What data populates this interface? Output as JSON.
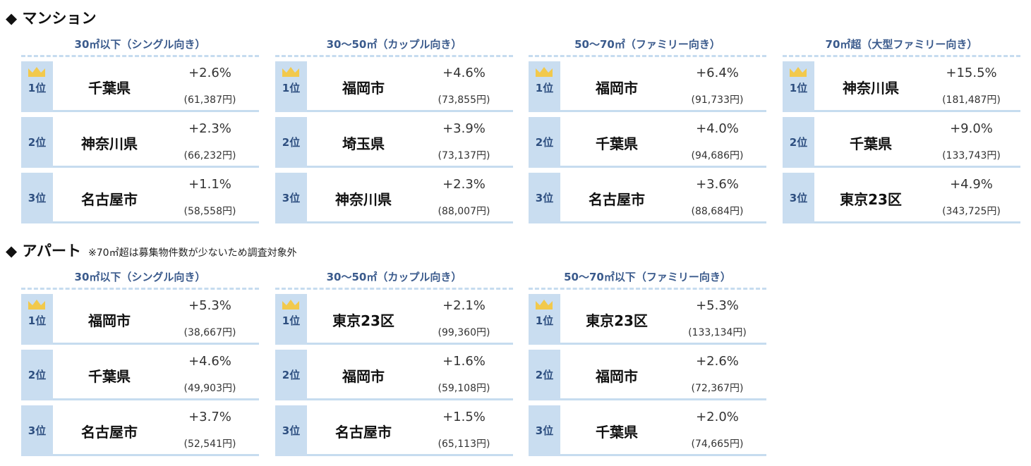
{
  "sections": [
    {
      "title": "◆ マンション",
      "note": "",
      "groups": [
        {
          "header": "30㎡以下（シングル向き）",
          "rows": [
            {
              "rank": "1位",
              "city": "千葉県",
              "pct": "+2.6%",
              "price": "(61,387円)"
            },
            {
              "rank": "2位",
              "city": "神奈川県",
              "pct": "+2.3%",
              "price": "(66,232円)"
            },
            {
              "rank": "3位",
              "city": "名古屋市",
              "pct": "+1.1%",
              "price": "(58,558円)"
            }
          ]
        },
        {
          "header": "30〜50㎡（カップル向き）",
          "rows": [
            {
              "rank": "1位",
              "city": "福岡市",
              "pct": "+4.6%",
              "price": "(73,855円)"
            },
            {
              "rank": "2位",
              "city": "埼玉県",
              "pct": "+3.9%",
              "price": "(73,137円)"
            },
            {
              "rank": "3位",
              "city": "神奈川県",
              "pct": "+2.3%",
              "price": "(88,007円)"
            }
          ]
        },
        {
          "header": "50〜70㎡（ファミリー向き）",
          "rows": [
            {
              "rank": "1位",
              "city": "福岡市",
              "pct": "+6.4%",
              "price": "(91,733円)"
            },
            {
              "rank": "2位",
              "city": "千葉県",
              "pct": "+4.0%",
              "price": "(94,686円)"
            },
            {
              "rank": "3位",
              "city": "名古屋市",
              "pct": "+3.6%",
              "price": "(88,684円)"
            }
          ]
        },
        {
          "header": "70㎡超（大型ファミリー向き）",
          "rows": [
            {
              "rank": "1位",
              "city": "神奈川県",
              "pct": "+15.5%",
              "price": "(181,487円)"
            },
            {
              "rank": "2位",
              "city": "千葉県",
              "pct": "+9.0%",
              "price": "(133,743円)"
            },
            {
              "rank": "3位",
              "city": "東京23区",
              "pct": "+4.9%",
              "price": "(343,725円)"
            }
          ]
        }
      ]
    },
    {
      "title": "◆ アパート",
      "note": "※70㎡超は募集物件数が少ないため調査対象外",
      "groups": [
        {
          "header": "30㎡以下（シングル向き）",
          "rows": [
            {
              "rank": "1位",
              "city": "福岡市",
              "pct": "+5.3%",
              "price": "(38,667円)"
            },
            {
              "rank": "2位",
              "city": "千葉県",
              "pct": "+4.6%",
              "price": "(49,903円)"
            },
            {
              "rank": "3位",
              "city": "名古屋市",
              "pct": "+3.7%",
              "price": "(52,541円)"
            }
          ]
        },
        {
          "header": "30〜50㎡（カップル向き）",
          "rows": [
            {
              "rank": "1位",
              "city": "東京23区",
              "pct": "+2.1%",
              "price": "(99,360円)"
            },
            {
              "rank": "2位",
              "city": "福岡市",
              "pct": "+1.6%",
              "price": "(59,108円)"
            },
            {
              "rank": "3位",
              "city": "名古屋市",
              "pct": "+1.5%",
              "price": "(65,113円)"
            }
          ]
        },
        {
          "header": "50〜70㎡以下（ファミリー向き）",
          "rows": [
            {
              "rank": "1位",
              "city": "東京23区",
              "pct": "+5.3%",
              "price": "(133,134円)"
            },
            {
              "rank": "2位",
              "city": "福岡市",
              "pct": "+2.6%",
              "price": "(72,367円)"
            },
            {
              "rank": "3位",
              "city": "千葉県",
              "pct": "+2.0%",
              "price": "(74,665円)"
            }
          ]
        }
      ]
    }
  ],
  "colors": {
    "rank_bg": "#c9ddf0",
    "header_text": "#3a5a8c",
    "crown": "#f2c94c",
    "dash": "#c6dcef"
  },
  "icons": {
    "top_rank": "crown-icon"
  }
}
